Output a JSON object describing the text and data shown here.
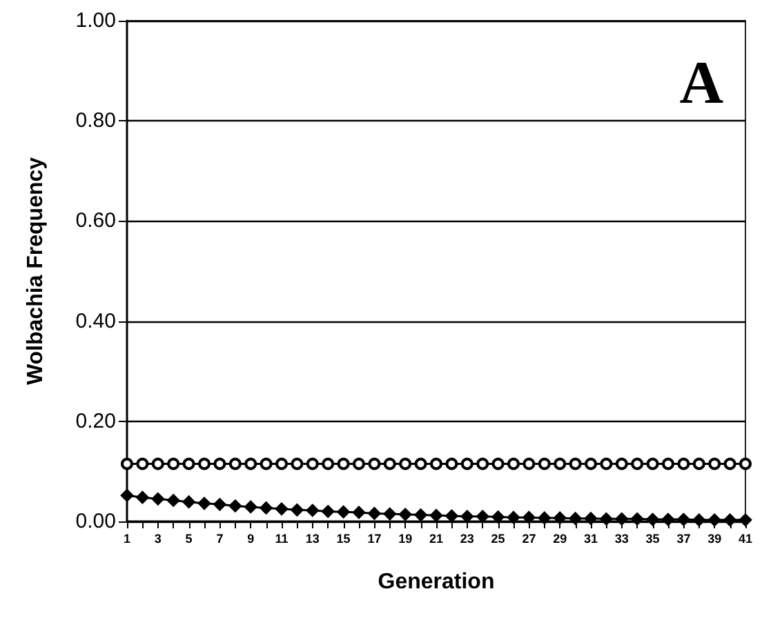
{
  "chart_data": {
    "type": "line",
    "xlabel": "Generation",
    "ylabel": "Wolbachia Frequency",
    "annotations": [
      "A"
    ],
    "x": [
      1,
      2,
      3,
      4,
      5,
      6,
      7,
      8,
      9,
      10,
      11,
      12,
      13,
      14,
      15,
      16,
      17,
      18,
      19,
      20,
      21,
      22,
      23,
      24,
      25,
      26,
      27,
      28,
      29,
      30,
      31,
      32,
      33,
      34,
      35,
      36,
      37,
      38,
      39,
      40,
      41
    ],
    "series": [
      {
        "color": "#000000",
        "marker": "circle",
        "values": [
          0.115,
          0.115,
          0.115,
          0.115,
          0.115,
          0.115,
          0.115,
          0.115,
          0.115,
          0.115,
          0.115,
          0.115,
          0.115,
          0.115,
          0.115,
          0.115,
          0.115,
          0.115,
          0.115,
          0.115,
          0.115,
          0.115,
          0.115,
          0.115,
          0.115,
          0.115,
          0.115,
          0.115,
          0.115,
          0.115,
          0.115,
          0.115,
          0.115,
          0.115,
          0.115,
          0.115,
          0.115,
          0.115,
          0.115,
          0.115,
          0.115
        ]
      },
      {
        "color": "#000000",
        "marker": "diamond",
        "values": [
          0.052,
          0.048,
          0.045,
          0.042,
          0.039,
          0.036,
          0.034,
          0.031,
          0.029,
          0.027,
          0.025,
          0.023,
          0.022,
          0.02,
          0.019,
          0.018,
          0.016,
          0.015,
          0.014,
          0.013,
          0.012,
          0.011,
          0.01,
          0.01,
          0.009,
          0.008,
          0.008,
          0.007,
          0.007,
          0.006,
          0.006,
          0.005,
          0.005,
          0.005,
          0.004,
          0.004,
          0.004,
          0.003,
          0.003,
          0.003,
          0.003
        ]
      }
    ],
    "xlim": [
      1,
      41
    ],
    "xticks": [
      1,
      {
        "value": 2,
        "label": null
      },
      3,
      {
        "value": 4,
        "label": null
      },
      5,
      {
        "value": 6,
        "label": null
      },
      7,
      {
        "value": 8,
        "label": null
      },
      9,
      {
        "value": 10,
        "label": null
      },
      11,
      {
        "value": 12,
        "label": null
      },
      13,
      {
        "value": 14,
        "label": null
      },
      15,
      {
        "value": 16,
        "label": null
      },
      17,
      {
        "value": 18,
        "label": null
      },
      19,
      {
        "value": 20,
        "label": null
      },
      21,
      {
        "value": 22,
        "label": null
      },
      23,
      {
        "value": 24,
        "label": null
      },
      25,
      {
        "value": 26,
        "label": null
      },
      27,
      {
        "value": 28,
        "label": null
      },
      29,
      {
        "value": 30,
        "label": null
      },
      31,
      {
        "value": 32,
        "label": null
      },
      33,
      {
        "value": 34,
        "label": null
      },
      35,
      {
        "value": 36,
        "label": null
      },
      37,
      {
        "value": 38,
        "label": null
      },
      39,
      {
        "value": 40,
        "label": null
      },
      41
    ],
    "ylim": [
      0,
      1
    ],
    "yticks": [
      {
        "value": 0,
        "label": "0.00"
      },
      {
        "value": 0.2,
        "label": "0.20"
      },
      {
        "value": 0.4,
        "label": "0.40"
      },
      {
        "value": 0.6,
        "label": "0.60"
      },
      {
        "value": 0.8,
        "label": "0.80"
      },
      {
        "value": 1,
        "label": "1.00"
      }
    ],
    "grid": "y",
    "line_style": "solid"
  }
}
